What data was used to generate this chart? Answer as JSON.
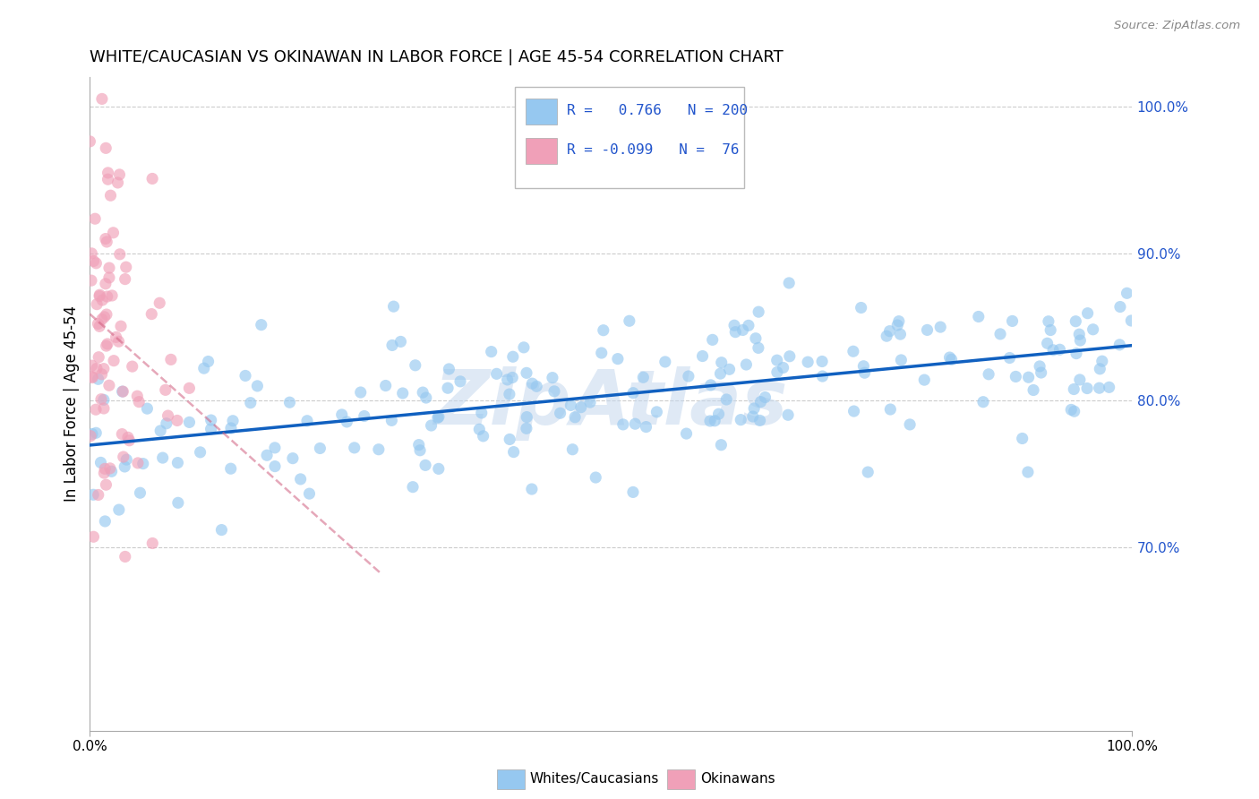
{
  "title": "WHITE/CAUCASIAN VS OKINAWAN IN LABOR FORCE | AGE 45-54 CORRELATION CHART",
  "source": "Source: ZipAtlas.com",
  "ylabel": "In Labor Force | Age 45-54",
  "blue_R": 0.766,
  "blue_N": 200,
  "pink_R": -0.099,
  "pink_N": 76,
  "blue_color": "#96c8f0",
  "pink_color": "#f0a0b8",
  "blue_line_color": "#1060c0",
  "pink_line_color": "#d06080",
  "legend_blue_label": "Whites/Caucasians",
  "legend_pink_label": "Okinawans",
  "watermark_text": "ZipAtlas",
  "bg_color": "#ffffff",
  "grid_color": "#cccccc",
  "text_color": "#2255cc",
  "yticks": [
    0.7,
    0.8,
    0.9,
    1.0
  ],
  "ylim_min": 0.575,
  "ylim_max": 1.02,
  "xlim_min": 0.0,
  "xlim_max": 1.0,
  "blue_scatter_seed": 12,
  "pink_scatter_seed": 7
}
